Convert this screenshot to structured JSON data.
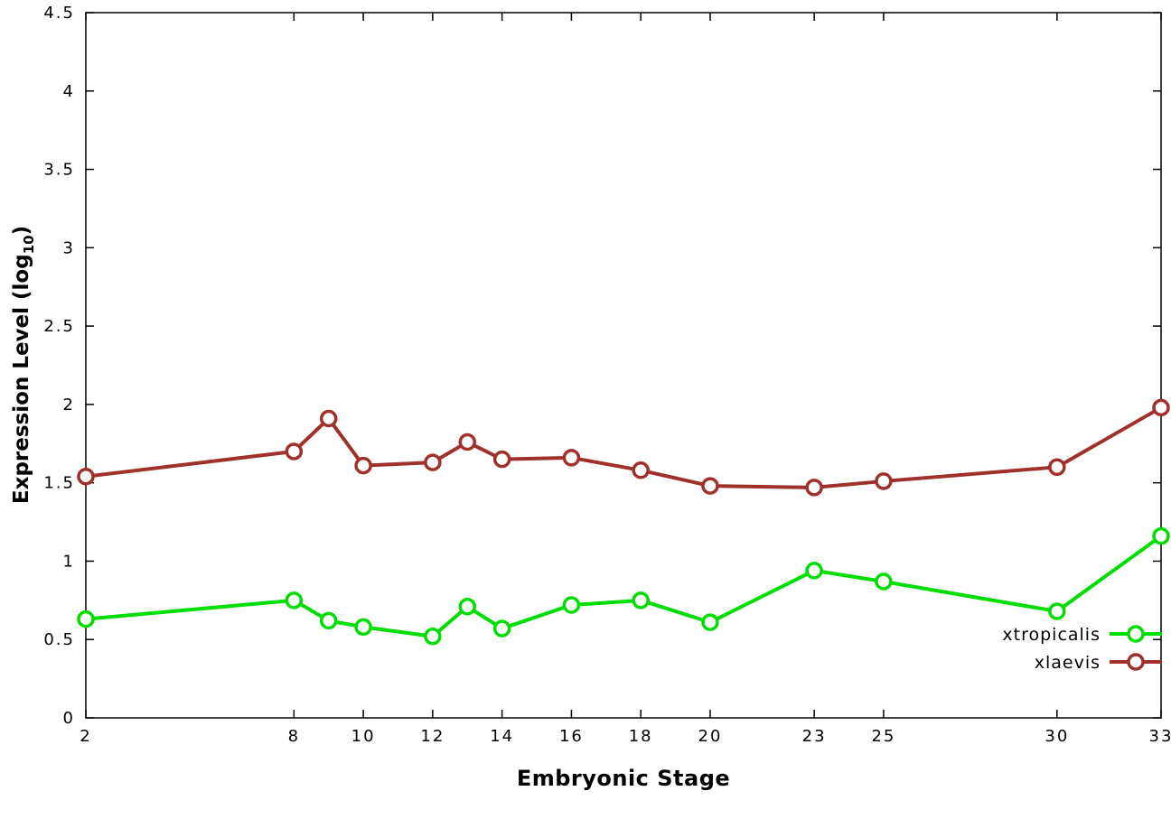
{
  "chart_data": {
    "type": "line",
    "title": "",
    "xlabel": "Embryonic Stage",
    "ylabel": {
      "prefix": "Expression Level (log",
      "sub": "10",
      "suffix": ")"
    },
    "xlim": [
      2,
      33
    ],
    "ylim": [
      0,
      4.5
    ],
    "x_ticks": [
      2,
      8,
      10,
      12,
      14,
      16,
      18,
      20,
      23,
      25,
      30,
      33
    ],
    "y_ticks": [
      0,
      0.5,
      1,
      1.5,
      2,
      2.5,
      3,
      3.5,
      4,
      4.5
    ],
    "grid": false,
    "legend_position": "inside-bottom-right",
    "x": [
      2,
      8,
      9,
      10,
      12,
      13,
      14,
      16,
      18,
      20,
      23,
      25,
      30,
      33
    ],
    "series": [
      {
        "name": "xtropicalis",
        "color": "#00dd00",
        "values": [
          0.63,
          0.75,
          0.62,
          0.58,
          0.52,
          0.71,
          0.57,
          0.72,
          0.75,
          0.61,
          0.94,
          0.87,
          0.68,
          1.16
        ]
      },
      {
        "name": "xlaevis",
        "color": "#a0302a",
        "values": [
          1.54,
          1.7,
          1.91,
          1.61,
          1.63,
          1.76,
          1.65,
          1.66,
          1.58,
          1.48,
          1.47,
          1.51,
          1.6,
          1.98
        ]
      }
    ]
  },
  "colors": {
    "background": "#ffffff",
    "axis": "#000000"
  }
}
